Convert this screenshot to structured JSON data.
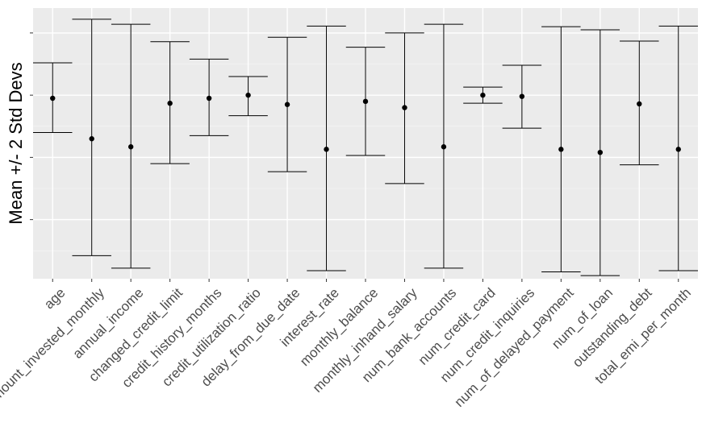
{
  "chart_data": {
    "type": "errorbar",
    "title": "",
    "xlabel": "",
    "ylabel": "Mean +/- 2 Std Devs",
    "y_tick_labels_visible": false,
    "ylim": [
      -2.95,
      1.4
    ],
    "y_ticks": [
      -2.0,
      -1.0,
      0.0,
      1.0
    ],
    "grid": true,
    "categories": [
      "age",
      "amount_invested_monthly",
      "annual_income",
      "changed_credit_limit",
      "credit_history_months",
      "credit_utilization_ratio",
      "delay_from_due_date",
      "interest_rate",
      "monthly_balance",
      "monthly_inhand_salary",
      "num_bank_accounts",
      "num_credit_card",
      "num_credit_inquiries",
      "num_of_delayed_payment",
      "num_of_loan",
      "outstanding_debt",
      "total_emi_per_month"
    ],
    "mean": [
      -0.05,
      -0.7,
      -0.83,
      -0.13,
      -0.05,
      0.0,
      -0.15,
      -0.87,
      -0.1,
      -0.2,
      -0.83,
      0.0,
      -0.02,
      -0.87,
      -0.92,
      -0.14,
      -0.87
    ],
    "lower": [
      -0.6,
      -2.58,
      -2.78,
      -1.1,
      -0.65,
      -0.33,
      -1.23,
      -2.82,
      -0.97,
      -1.42,
      -2.78,
      -0.13,
      -0.53,
      -2.84,
      -2.9,
      -1.12,
      -2.82
    ],
    "upper": [
      0.52,
      1.22,
      1.14,
      0.86,
      0.58,
      0.3,
      0.93,
      1.11,
      0.77,
      1.0,
      1.14,
      0.13,
      0.48,
      1.1,
      1.05,
      0.87,
      1.11
    ]
  }
}
